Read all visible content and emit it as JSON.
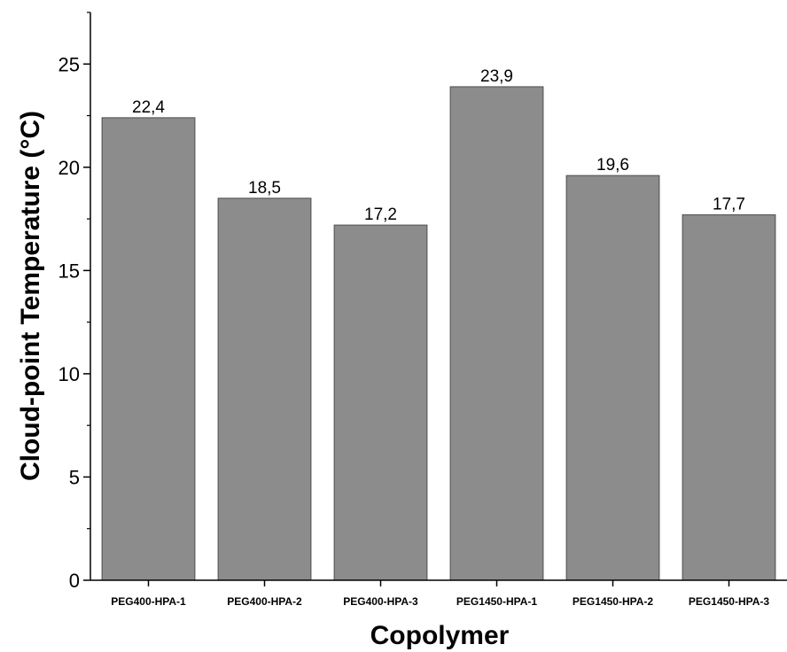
{
  "chart_data": {
    "type": "bar",
    "xlabel": "Copolymer",
    "ylabel": "Cloud-point Temperature (°C)",
    "categories": [
      "PEG400-HPA-1",
      "PEG400-HPA-2",
      "PEG400-HPA-3",
      "PEG1450-HPA-1",
      "PEG1450-HPA-2",
      "PEG1450-HPA-3"
    ],
    "values": [
      22.4,
      18.5,
      17.2,
      23.9,
      19.6,
      17.7
    ],
    "value_labels": [
      "22,4",
      "18,5",
      "17,2",
      "23,9",
      "19,6",
      "17,7"
    ],
    "ylim": [
      0,
      27.5
    ],
    "yticks": [
      0,
      5,
      10,
      15,
      20,
      25
    ],
    "yticks_minor": [
      2.5,
      7.5,
      12.5,
      17.5,
      22.5,
      27.5
    ],
    "bar_color": "#8c8c8c",
    "bar_edge_color": "#4d4d4d",
    "grid": false,
    "legend": "none"
  }
}
